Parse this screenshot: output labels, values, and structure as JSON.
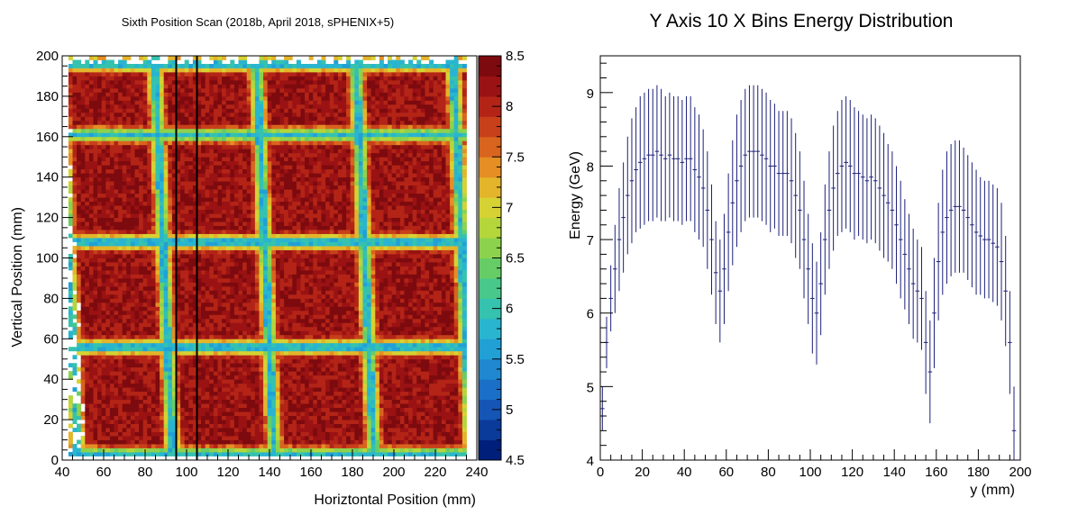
{
  "chart_data": [
    {
      "type": "heatmap",
      "title": "Sixth Position Scan (2018b, April 2018, sPHENIX+5)",
      "xlabel": "Horiztontal Position (mm)",
      "ylabel": "Vertical Position (mm)",
      "xlim": [
        40,
        240
      ],
      "ylim": [
        0,
        200
      ],
      "x_ticks": [
        "40",
        "60",
        "80",
        "100",
        "120",
        "140",
        "160",
        "180",
        "200",
        "220",
        "240"
      ],
      "y_ticks": [
        "0",
        "20",
        "40",
        "60",
        "80",
        "100",
        "120",
        "140",
        "160",
        "180",
        "200"
      ],
      "z_range": [
        4.5,
        8.5
      ],
      "z_ticks": [
        "4.5",
        "5",
        "5.5",
        "6",
        "6.5",
        "7",
        "7.5",
        "8",
        "8.5"
      ],
      "z_palette": [
        "#001f7a",
        "#0a3a9a",
        "#1455b5",
        "#1a6fc6",
        "#1f88d0",
        "#21a0d6",
        "#29b5cf",
        "#35c2ae",
        "#48c88a",
        "#66cd66",
        "#8dd24d",
        "#b4d63b",
        "#d6d233",
        "#e4b42a",
        "#e48e24",
        "#d9641e",
        "#c8401a",
        "#b32417",
        "#9a1213",
        "#7d0a0e"
      ],
      "cell_bounds": {
        "x": [
          43,
          89,
          138,
          186,
          233
        ],
        "y": [
          3,
          56,
          108,
          161,
          196
        ]
      },
      "vertical_lines_x": [
        95,
        105
      ]
    },
    {
      "type": "line",
      "title": "Y Axis 10 X Bins Energy Distribution",
      "xlabel": "y (mm)",
      "ylabel": "Energy (GeV)",
      "xlim": [
        0,
        200
      ],
      "ylim": [
        4,
        9.5
      ],
      "x_ticks": [
        "0",
        "20",
        "40",
        "60",
        "80",
        "100",
        "120",
        "140",
        "160",
        "180",
        "200"
      ],
      "y_ticks": [
        "4",
        "5",
        "6",
        "7",
        "8",
        "9"
      ],
      "series_color": "#1c2078",
      "x": [
        1,
        3,
        5,
        7,
        9,
        11,
        13,
        15,
        17,
        19,
        21,
        23,
        25,
        27,
        29,
        31,
        33,
        35,
        37,
        39,
        41,
        43,
        45,
        47,
        49,
        51,
        53,
        55,
        57,
        59,
        61,
        63,
        65,
        67,
        69,
        71,
        73,
        75,
        77,
        79,
        81,
        83,
        85,
        87,
        89,
        91,
        93,
        95,
        97,
        99,
        101,
        103,
        105,
        107,
        109,
        111,
        113,
        115,
        117,
        119,
        121,
        123,
        125,
        127,
        129,
        131,
        133,
        135,
        137,
        139,
        141,
        143,
        145,
        147,
        149,
        151,
        153,
        155,
        157,
        159,
        161,
        163,
        165,
        167,
        169,
        171,
        173,
        175,
        177,
        179,
        181,
        183,
        185,
        187,
        189,
        191,
        193,
        195,
        197
      ],
      "values": [
        4.7,
        5.6,
        6.2,
        6.6,
        7.0,
        7.3,
        7.6,
        7.8,
        7.95,
        8.05,
        8.1,
        8.15,
        8.15,
        8.2,
        8.15,
        8.1,
        8.15,
        8.1,
        8.1,
        8.05,
        8.1,
        8.1,
        7.95,
        7.85,
        7.7,
        7.4,
        7.0,
        6.55,
        6.3,
        6.6,
        7.1,
        7.5,
        7.8,
        8.0,
        8.15,
        8.2,
        8.2,
        8.2,
        8.15,
        8.1,
        8.0,
        8.0,
        7.9,
        7.9,
        7.9,
        7.8,
        7.6,
        7.4,
        7.0,
        6.6,
        6.2,
        6.0,
        6.4,
        7.0,
        7.4,
        7.7,
        7.9,
        8.0,
        8.05,
        8.0,
        7.9,
        7.9,
        7.85,
        7.8,
        7.85,
        7.8,
        7.7,
        7.6,
        7.5,
        7.4,
        7.2,
        7.0,
        6.8,
        6.6,
        6.4,
        6.3,
        6.2,
        5.6,
        5.2,
        6.0,
        6.7,
        7.1,
        7.3,
        7.4,
        7.45,
        7.45,
        7.4,
        7.3,
        7.2,
        7.1,
        7.05,
        7.0,
        7.0,
        6.95,
        6.9,
        6.7,
        6.3,
        5.6,
        4.4
      ],
      "errors": [
        0.3,
        0.35,
        0.45,
        0.6,
        0.7,
        0.75,
        0.8,
        0.85,
        0.85,
        0.9,
        0.9,
        0.9,
        0.9,
        0.9,
        0.9,
        0.85,
        0.85,
        0.85,
        0.85,
        0.85,
        0.85,
        0.85,
        0.85,
        0.85,
        0.8,
        0.8,
        0.75,
        0.7,
        0.7,
        0.75,
        0.8,
        0.85,
        0.9,
        0.9,
        0.9,
        0.9,
        0.9,
        0.9,
        0.9,
        0.9,
        0.9,
        0.85,
        0.85,
        0.85,
        0.85,
        0.85,
        0.85,
        0.8,
        0.8,
        0.75,
        0.75,
        0.7,
        0.7,
        0.75,
        0.8,
        0.85,
        0.85,
        0.9,
        0.9,
        0.9,
        0.9,
        0.85,
        0.85,
        0.85,
        0.85,
        0.85,
        0.85,
        0.85,
        0.8,
        0.8,
        0.8,
        0.8,
        0.75,
        0.75,
        0.75,
        0.7,
        0.7,
        0.7,
        0.7,
        0.75,
        0.8,
        0.85,
        0.9,
        0.9,
        0.9,
        0.9,
        0.85,
        0.85,
        0.85,
        0.85,
        0.8,
        0.8,
        0.8,
        0.8,
        0.8,
        0.8,
        0.75,
        0.7,
        0.6
      ]
    }
  ]
}
